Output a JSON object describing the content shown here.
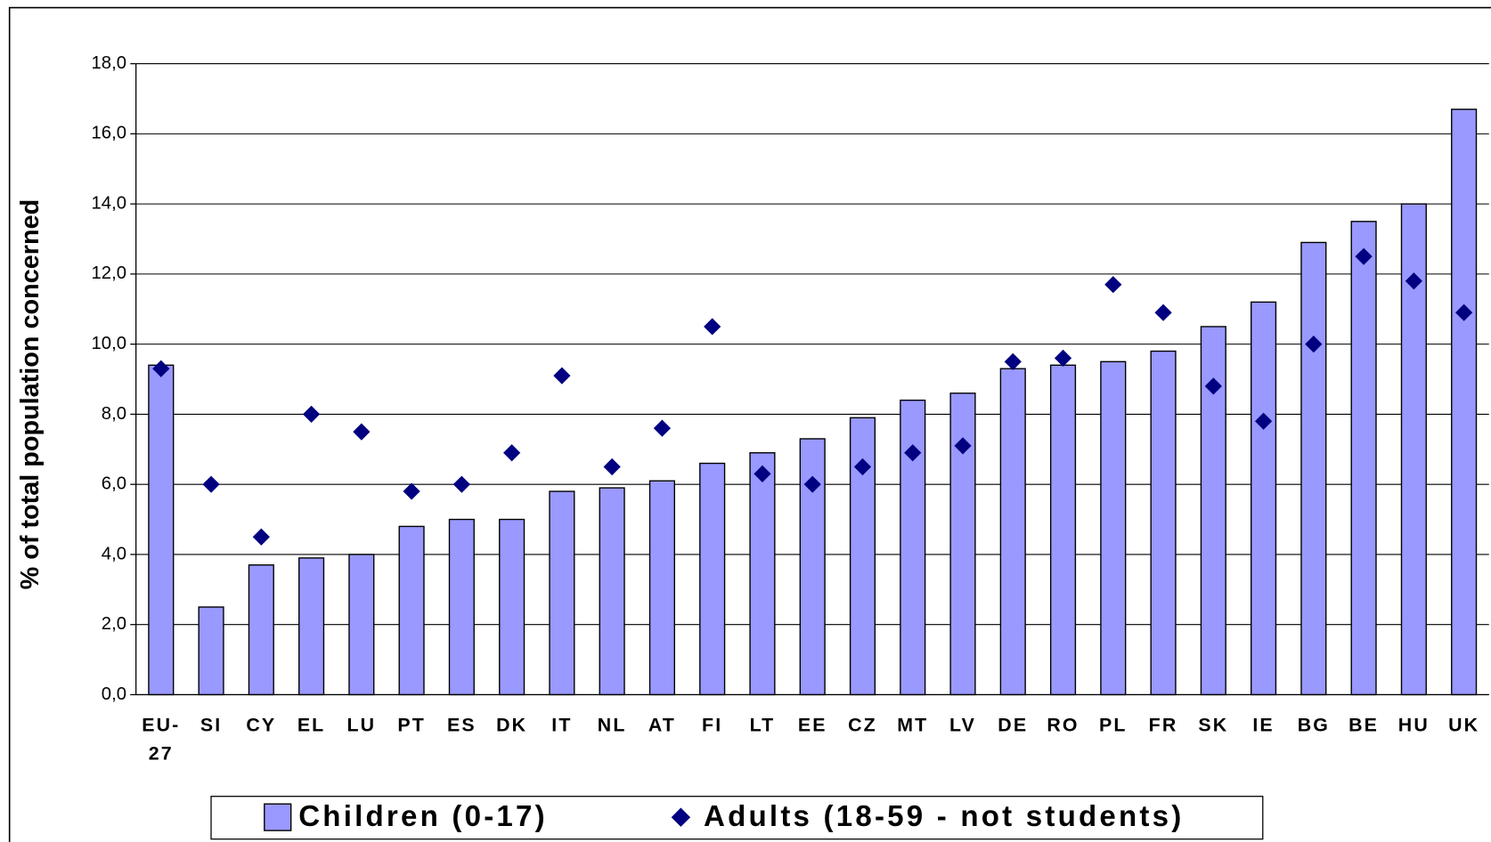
{
  "chart_data": {
    "type": "bar",
    "ylabel": "% of total population concerned",
    "categories": [
      "EU-27",
      "SI",
      "CY",
      "EL",
      "LU",
      "PT",
      "ES",
      "DK",
      "IT",
      "NL",
      "AT",
      "FI",
      "LT",
      "EE",
      "CZ",
      "MT",
      "LV",
      "DE",
      "RO",
      "PL",
      "FR",
      "SK",
      "IE",
      "BG",
      "BE",
      "HU",
      "UK"
    ],
    "series": [
      {
        "name": "Children (0-17)",
        "type": "bar",
        "color": "#9999ff",
        "values": [
          9.4,
          2.5,
          3.7,
          3.9,
          4.0,
          4.8,
          5.0,
          5.0,
          5.8,
          5.9,
          6.1,
          6.6,
          6.9,
          7.3,
          7.9,
          8.4,
          8.6,
          9.3,
          9.4,
          9.5,
          9.8,
          10.5,
          11.2,
          12.9,
          13.5,
          14.0,
          16.7
        ]
      },
      {
        "name": "Adults (18-59 - not students)",
        "type": "scatter",
        "color": "#000080",
        "values": [
          9.3,
          6.0,
          4.5,
          8.0,
          7.5,
          5.8,
          6.0,
          6.9,
          9.1,
          6.5,
          7.6,
          10.5,
          6.3,
          6.0,
          6.5,
          6.9,
          7.1,
          9.5,
          9.6,
          11.7,
          10.9,
          8.8,
          7.8,
          10.0,
          12.5,
          11.8,
          10.9
        ]
      }
    ],
    "ylim": [
      0,
      18
    ],
    "yticks": [
      {
        "value": 0,
        "label": "0,0"
      },
      {
        "value": 2,
        "label": "2,0"
      },
      {
        "value": 4,
        "label": "4,0"
      },
      {
        "value": 6,
        "label": "6,0"
      },
      {
        "value": 8,
        "label": "8,0"
      },
      {
        "value": 10,
        "label": "10,0"
      },
      {
        "value": 12,
        "label": "12,0"
      },
      {
        "value": 14,
        "label": "14,0"
      },
      {
        "value": 16,
        "label": "16,0"
      },
      {
        "value": 18,
        "label": "18,0"
      }
    ],
    "grid": true
  }
}
